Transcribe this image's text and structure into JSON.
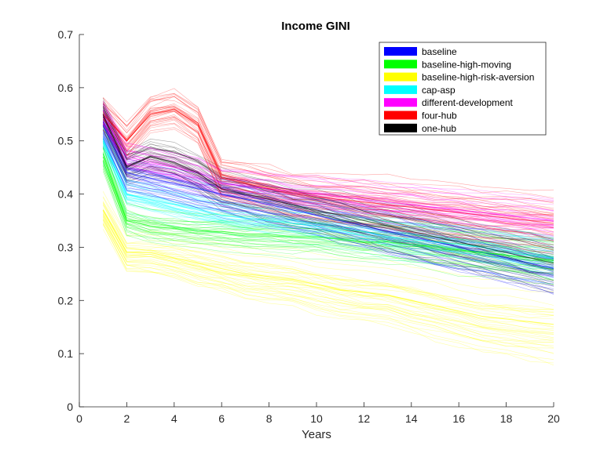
{
  "chart_data": {
    "type": "line",
    "title": "Income GINI",
    "xlabel": "Years",
    "ylabel": "",
    "xlim": [
      0,
      20
    ],
    "ylim": [
      0,
      0.7
    ],
    "xticks": [
      0,
      2,
      4,
      6,
      8,
      10,
      12,
      14,
      16,
      18,
      20
    ],
    "yticks": [
      0,
      0.1,
      0.2,
      0.3,
      0.4,
      0.5,
      0.6,
      0.7
    ],
    "grid": false,
    "legend_position": "top-right",
    "x": [
      1,
      2,
      3,
      4,
      5,
      6,
      7,
      8,
      9,
      10,
      11,
      12,
      13,
      14,
      15,
      16,
      17,
      18,
      19,
      20
    ],
    "series": [
      {
        "name": "baseline",
        "color": "#0000ff",
        "values": [
          0.53,
          0.44,
          0.43,
          0.42,
          0.41,
          0.4,
          0.39,
          0.38,
          0.37,
          0.36,
          0.35,
          0.34,
          0.33,
          0.32,
          0.31,
          0.3,
          0.29,
          0.28,
          0.27,
          0.26
        ]
      },
      {
        "name": "baseline-high-moving",
        "color": "#00ff00",
        "values": [
          0.47,
          0.35,
          0.34,
          0.335,
          0.33,
          0.33,
          0.325,
          0.325,
          0.32,
          0.32,
          0.315,
          0.31,
          0.31,
          0.305,
          0.3,
          0.295,
          0.29,
          0.285,
          0.28,
          0.275
        ]
      },
      {
        "name": "baseline-high-risk-aversion",
        "color": "#ffff00",
        "values": [
          0.37,
          0.29,
          0.29,
          0.28,
          0.27,
          0.26,
          0.25,
          0.245,
          0.24,
          0.23,
          0.22,
          0.215,
          0.21,
          0.2,
          0.19,
          0.18,
          0.17,
          0.165,
          0.16,
          0.155
        ]
      },
      {
        "name": "cap-asp",
        "color": "#00ffff",
        "values": [
          0.5,
          0.4,
          0.39,
          0.38,
          0.37,
          0.36,
          0.355,
          0.35,
          0.345,
          0.34,
          0.335,
          0.33,
          0.32,
          0.315,
          0.31,
          0.305,
          0.3,
          0.29,
          0.285,
          0.28
        ]
      },
      {
        "name": "different-development",
        "color": "#ff00ff",
        "values": [
          0.55,
          0.47,
          0.46,
          0.45,
          0.44,
          0.42,
          0.415,
          0.41,
          0.405,
          0.4,
          0.395,
          0.39,
          0.385,
          0.38,
          0.375,
          0.37,
          0.365,
          0.36,
          0.355,
          0.35
        ]
      },
      {
        "name": "four-hub",
        "color": "#ff0000",
        "values": [
          0.55,
          0.5,
          0.55,
          0.56,
          0.53,
          0.43,
          0.42,
          0.41,
          0.4,
          0.395,
          0.39,
          0.385,
          0.38,
          0.375,
          0.37,
          0.365,
          0.36,
          0.355,
          0.35,
          0.345
        ]
      },
      {
        "name": "one-hub",
        "color": "#000000",
        "values": [
          0.55,
          0.45,
          0.47,
          0.46,
          0.44,
          0.41,
          0.4,
          0.39,
          0.38,
          0.37,
          0.36,
          0.35,
          0.34,
          0.33,
          0.32,
          0.31,
          0.3,
          0.29,
          0.28,
          0.27
        ]
      }
    ]
  }
}
